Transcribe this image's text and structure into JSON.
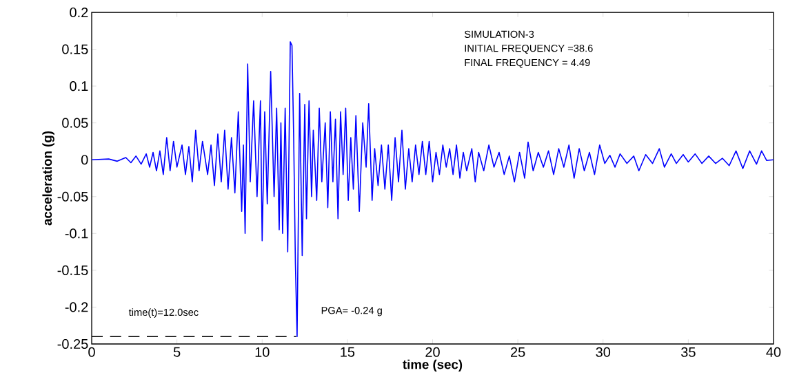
{
  "chart_data": {
    "type": "line",
    "xlabel": "time (sec)",
    "ylabel": "acceleration (g)",
    "xlim": [
      0,
      40
    ],
    "ylim": [
      -0.25,
      0.2
    ],
    "xticks": [
      0,
      5,
      10,
      15,
      20,
      25,
      30,
      35,
      40
    ],
    "yticks": [
      -0.25,
      -0.2,
      -0.15,
      -0.1,
      -0.05,
      0,
      0.05,
      0.1,
      0.15,
      0.2
    ],
    "marker": "none",
    "annotations": [
      "SIMULATION-3",
      "INITIAL FREQUENCY =38.6",
      "FINAL FREQUENCY = 4.49",
      "time(t)=12.0sec",
      "PGA=  -0.24 g"
    ],
    "series": [
      {
        "color": "#0000ff",
        "line_style": "solid",
        "x": [
          0,
          1,
          1.5,
          2,
          2.3,
          2.6,
          2.9,
          3.2,
          3.4,
          3.6,
          3.8,
          4.0,
          4.2,
          4.4,
          4.6,
          4.8,
          5.0,
          5.3,
          5.5,
          5.7,
          5.9,
          6.1,
          6.3,
          6.5,
          6.8,
          7.0,
          7.2,
          7.4,
          7.6,
          7.8,
          8.0,
          8.2,
          8.4,
          8.6,
          8.8,
          8.9,
          9.0,
          9.15,
          9.3,
          9.5,
          9.7,
          9.9,
          10.0,
          10.15,
          10.3,
          10.5,
          10.7,
          10.85,
          11.0,
          11.1,
          11.2,
          11.35,
          11.5,
          11.65,
          11.75,
          11.85,
          11.95,
          12.05,
          12.2,
          12.35,
          12.5,
          12.6,
          12.75,
          12.9,
          13.0,
          13.2,
          13.35,
          13.5,
          13.7,
          13.85,
          14.0,
          14.15,
          14.3,
          14.45,
          14.6,
          14.75,
          14.9,
          15.05,
          15.2,
          15.35,
          15.5,
          15.7,
          15.9,
          16.1,
          16.25,
          16.45,
          16.6,
          16.8,
          17.0,
          17.2,
          17.4,
          17.6,
          17.8,
          18.0,
          18.2,
          18.4,
          18.6,
          18.8,
          19.0,
          19.2,
          19.4,
          19.6,
          19.8,
          20.0,
          20.2,
          20.4,
          20.6,
          20.8,
          21.0,
          21.2,
          21.4,
          21.6,
          21.8,
          22.0,
          22.3,
          22.5,
          22.7,
          23.0,
          23.3,
          23.6,
          23.9,
          24.2,
          24.5,
          24.8,
          25.1,
          25.4,
          25.6,
          25.9,
          26.2,
          26.5,
          26.8,
          27.1,
          27.4,
          27.7,
          28.0,
          28.3,
          28.6,
          28.9,
          29.2,
          29.5,
          29.8,
          30.1,
          30.4,
          30.7,
          31.0,
          31.4,
          31.8,
          32.1,
          32.5,
          32.9,
          33.3,
          33.6,
          34.0,
          34.3,
          34.7,
          35.0,
          35.4,
          35.8,
          36.2,
          36.6,
          37.0,
          37.4,
          37.8,
          38.2,
          38.6,
          39.0,
          39.3,
          39.6,
          40
        ],
        "values": [
          0,
          0.001,
          -0.002,
          0.003,
          -0.004,
          0.005,
          -0.006,
          0.008,
          -0.01,
          0.01,
          -0.015,
          0.012,
          -0.02,
          0.03,
          -0.015,
          0.025,
          -0.01,
          0.02,
          -0.02,
          0.018,
          -0.03,
          0.04,
          -0.015,
          0.025,
          -0.02,
          0.02,
          -0.035,
          0.035,
          -0.03,
          0.04,
          -0.04,
          0.03,
          -0.045,
          0.065,
          -0.07,
          0.02,
          -0.1,
          0.13,
          -0.03,
          0.08,
          -0.05,
          0.08,
          -0.11,
          0.065,
          -0.06,
          0.12,
          -0.05,
          0.07,
          -0.095,
          0.05,
          -0.1,
          0.07,
          -0.125,
          0.16,
          0.155,
          0.03,
          -0.14,
          -0.24,
          0.09,
          -0.13,
          0.075,
          -0.08,
          0.08,
          -0.05,
          0.04,
          -0.055,
          0.07,
          -0.03,
          0.05,
          -0.065,
          0.065,
          -0.03,
          0.055,
          -0.08,
          0.065,
          -0.02,
          0.07,
          -0.055,
          0.03,
          -0.04,
          0.06,
          -0.07,
          0.05,
          -0.01,
          0.076,
          -0.055,
          0.015,
          -0.035,
          0.02,
          -0.04,
          0.02,
          -0.055,
          0.03,
          -0.03,
          0.04,
          -0.04,
          0.015,
          -0.03,
          0.02,
          -0.02,
          0.025,
          -0.02,
          0.025,
          -0.03,
          0.01,
          -0.02,
          0.02,
          -0.01,
          0.015,
          -0.02,
          0.02,
          -0.025,
          0.01,
          -0.015,
          0.015,
          -0.03,
          0.01,
          -0.015,
          0.02,
          -0.01,
          0.01,
          -0.02,
          0.005,
          -0.03,
          0.01,
          -0.025,
          0.024,
          -0.015,
          0.01,
          -0.01,
          0.012,
          -0.02,
          0.015,
          -0.01,
          0.02,
          -0.025,
          0.015,
          -0.015,
          0.01,
          -0.02,
          0.02,
          -0.005,
          0.006,
          -0.01,
          0.008,
          -0.005,
          0.005,
          -0.015,
          0.007,
          -0.005,
          0.015,
          -0.01,
          0.008,
          -0.005,
          0.007,
          -0.003,
          0.008,
          -0.005,
          0.005,
          -0.005,
          0.002,
          -0.008,
          0.012,
          -0.012,
          0.012,
          -0.006,
          0.012,
          -0.001,
          0
        ]
      },
      {
        "type": "line",
        "color": "#000000",
        "line_style": "dashed",
        "x": [
          0,
          12
        ],
        "values": [
          -0.24,
          -0.24
        ]
      }
    ]
  }
}
